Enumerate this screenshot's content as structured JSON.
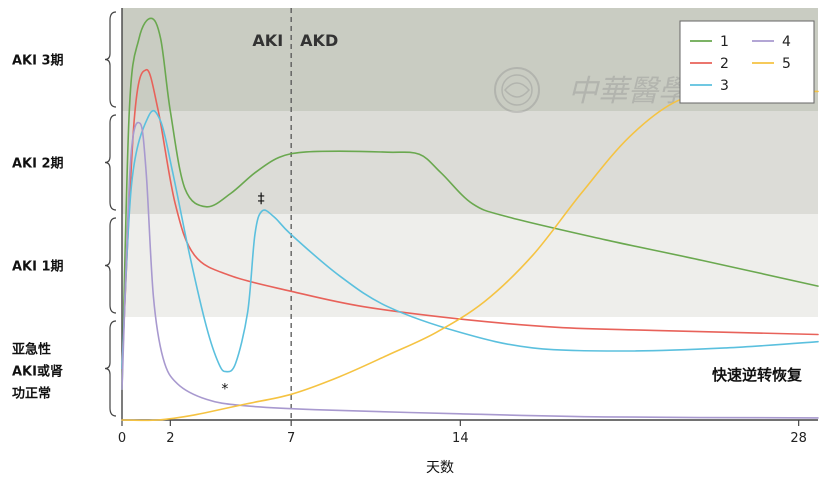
{
  "chart_data": {
    "type": "line",
    "xlabel": "天数",
    "x_ticks": [
      0,
      2,
      7,
      14,
      28
    ],
    "xlim": [
      0,
      28.8
    ],
    "y_bands": [
      {
        "label": "AKI 3期",
        "color": "#c9ccc2"
      },
      {
        "label": "AKI 2期",
        "color": "#dcdcd7"
      },
      {
        "label": "AKI 1期",
        "color": "#eeeeeb"
      },
      {
        "label": "亚急性AKI或肾功正常",
        "lines": [
          "亚急性",
          "AKI或肾",
          "功正常"
        ],
        "color": "#ffffff"
      }
    ],
    "phase_divider_x": 7,
    "phase_labels": [
      "AKI",
      "AKD"
    ],
    "annotations": [
      {
        "text": "*",
        "series": "3",
        "x": 4.3
      },
      {
        "text": "‡",
        "series": "3",
        "x": 5.8
      },
      {
        "text": "快速逆转恢复",
        "series": "4"
      }
    ],
    "legend": {
      "position": "top-right"
    },
    "series": [
      {
        "name": "1",
        "color": "#6aa84f",
        "points": [
          [
            0,
            0.3
          ],
          [
            0.3,
            3.0
          ],
          [
            0.7,
            3.7
          ],
          [
            1.2,
            3.9
          ],
          [
            1.6,
            3.7
          ],
          [
            2.0,
            3.0
          ],
          [
            2.6,
            2.25
          ],
          [
            3.5,
            2.07
          ],
          [
            4.5,
            2.2
          ],
          [
            5.5,
            2.4
          ],
          [
            6.5,
            2.55
          ],
          [
            7.5,
            2.6
          ],
          [
            9,
            2.61
          ],
          [
            11,
            2.6
          ],
          [
            12.3,
            2.58
          ],
          [
            13.2,
            2.4
          ],
          [
            14.5,
            2.1
          ],
          [
            16,
            1.97
          ],
          [
            20,
            1.75
          ],
          [
            24,
            1.55
          ],
          [
            28.8,
            1.3
          ]
        ]
      },
      {
        "name": "2",
        "color": "#e8625a",
        "points": [
          [
            0,
            0.5
          ],
          [
            0.5,
            2.9
          ],
          [
            1.0,
            3.4
          ],
          [
            1.5,
            3.0
          ],
          [
            2.2,
            2.1
          ],
          [
            3.0,
            1.6
          ],
          [
            4.5,
            1.4
          ],
          [
            7,
            1.25
          ],
          [
            10,
            1.1
          ],
          [
            14,
            0.98
          ],
          [
            18,
            0.9
          ],
          [
            22,
            0.87
          ],
          [
            28.8,
            0.83
          ]
        ]
      },
      {
        "name": "3",
        "color": "#5bc0de",
        "points": [
          [
            0,
            0.5
          ],
          [
            0.4,
            2.3
          ],
          [
            1.1,
            2.95
          ],
          [
            1.6,
            2.9
          ],
          [
            2.1,
            2.4
          ],
          [
            2.8,
            1.6
          ],
          [
            3.5,
            0.9
          ],
          [
            4.0,
            0.55
          ],
          [
            4.3,
            0.47
          ],
          [
            4.7,
            0.55
          ],
          [
            5.2,
            1.05
          ],
          [
            5.5,
            1.8
          ],
          [
            5.8,
            2.03
          ],
          [
            6.3,
            1.97
          ],
          [
            7,
            1.8
          ],
          [
            9,
            1.4
          ],
          [
            11,
            1.1
          ],
          [
            14,
            0.85
          ],
          [
            17,
            0.7
          ],
          [
            21,
            0.67
          ],
          [
            25,
            0.7
          ],
          [
            28.8,
            0.76
          ]
        ]
      },
      {
        "name": "4",
        "color": "#a899cf",
        "points": [
          [
            0,
            0.3
          ],
          [
            0.35,
            2.5
          ],
          [
            0.75,
            2.88
          ],
          [
            1.0,
            2.4
          ],
          [
            1.3,
            1.2
          ],
          [
            1.7,
            0.6
          ],
          [
            2.3,
            0.35
          ],
          [
            3.5,
            0.2
          ],
          [
            5,
            0.14
          ],
          [
            8,
            0.1
          ],
          [
            14,
            0.06
          ],
          [
            20,
            0.03
          ],
          [
            28.8,
            0.02
          ]
        ]
      },
      {
        "name": "5",
        "color": "#f5c342",
        "points": [
          [
            0,
            0.0
          ],
          [
            1.5,
            0.0
          ],
          [
            3,
            0.05
          ],
          [
            5,
            0.15
          ],
          [
            7,
            0.25
          ],
          [
            9,
            0.42
          ],
          [
            11,
            0.63
          ],
          [
            13,
            0.85
          ],
          [
            15,
            1.15
          ],
          [
            17,
            1.6
          ],
          [
            19,
            2.2
          ],
          [
            21,
            2.75
          ],
          [
            23,
            3.1
          ],
          [
            25,
            3.18
          ],
          [
            27,
            3.19
          ],
          [
            28.8,
            3.19
          ]
        ]
      }
    ]
  }
}
